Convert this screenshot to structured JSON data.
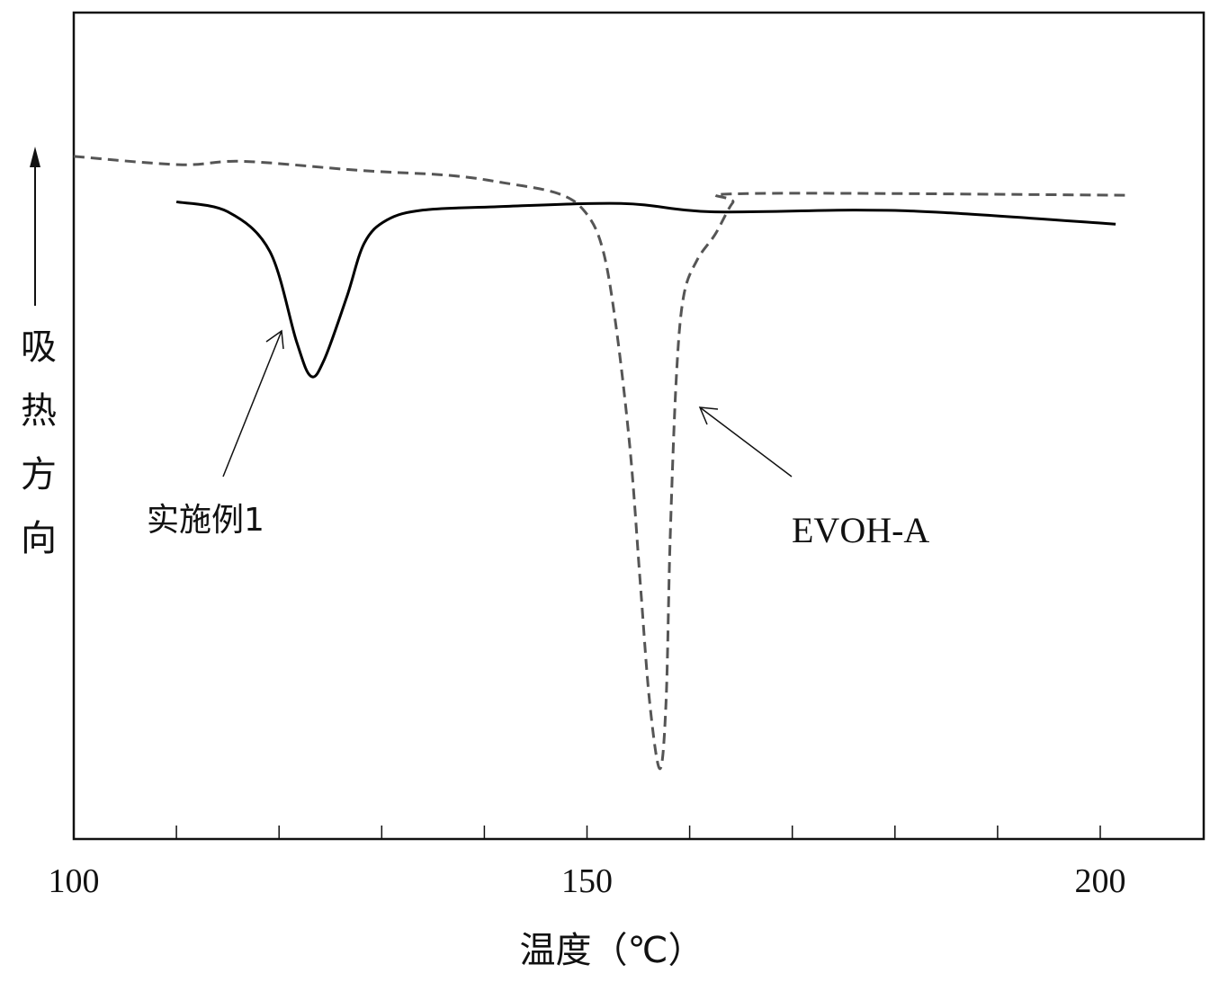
{
  "chart_data": {
    "type": "line",
    "title": "",
    "xlabel": "温度（℃）",
    "ylabel": "吸热方向",
    "ylabel_chars": [
      "吸",
      "热",
      "方",
      "向"
    ],
    "xlim": [
      100,
      210
    ],
    "ylim": [
      0,
      100
    ],
    "x_ticks": [
      100,
      150,
      200
    ],
    "x_tick_labels": [
      "100",
      "150",
      "200"
    ],
    "x_minor_ticks": [
      110,
      120,
      130,
      140,
      160,
      170,
      180,
      190
    ],
    "grid": false,
    "legend": "none",
    "series": [
      {
        "name": "实施例1",
        "style": "solid",
        "color": "#000000",
        "x": [
          110.0,
          115.0,
          119.1,
          121.7,
          123.1,
          124.4,
          126.6,
          128.3,
          130.5,
          134.0,
          141.0,
          153.3,
          162.1,
          176.1,
          184.8,
          201.5
        ],
        "y": [
          77.1,
          75.9,
          71.1,
          60.2,
          56.0,
          58.0,
          65.6,
          72.1,
          74.9,
          76.1,
          76.5,
          76.9,
          75.9,
          76.1,
          75.8,
          74.4
        ]
      },
      {
        "name": "EVOH-A",
        "style": "dashed",
        "color": "#555555",
        "x": [
          100.0,
          110.3,
          116.5,
          127.9,
          136.6,
          141.9,
          147.2,
          149.8,
          151.5,
          152.8,
          154.2,
          155.2,
          156.1,
          157.1,
          157.7,
          158.1,
          158.7,
          159.4,
          160.7,
          162.5,
          164.2,
          165.6,
          202.4
        ],
        "y": [
          82.6,
          81.6,
          82.0,
          80.9,
          80.3,
          79.4,
          78.1,
          75.9,
          71.5,
          62.3,
          47.1,
          30.8,
          16.6,
          8.5,
          16.6,
          36.3,
          55.8,
          65.6,
          70.0,
          73.2,
          77.0,
          78.1,
          77.9
        ]
      }
    ],
    "annotations": [
      {
        "text": "实施例1",
        "points_to": [
          122.0,
          61.0
        ]
      },
      {
        "text": "EVOH-A",
        "points_to": [
          159.3,
          52.3
        ]
      }
    ]
  }
}
